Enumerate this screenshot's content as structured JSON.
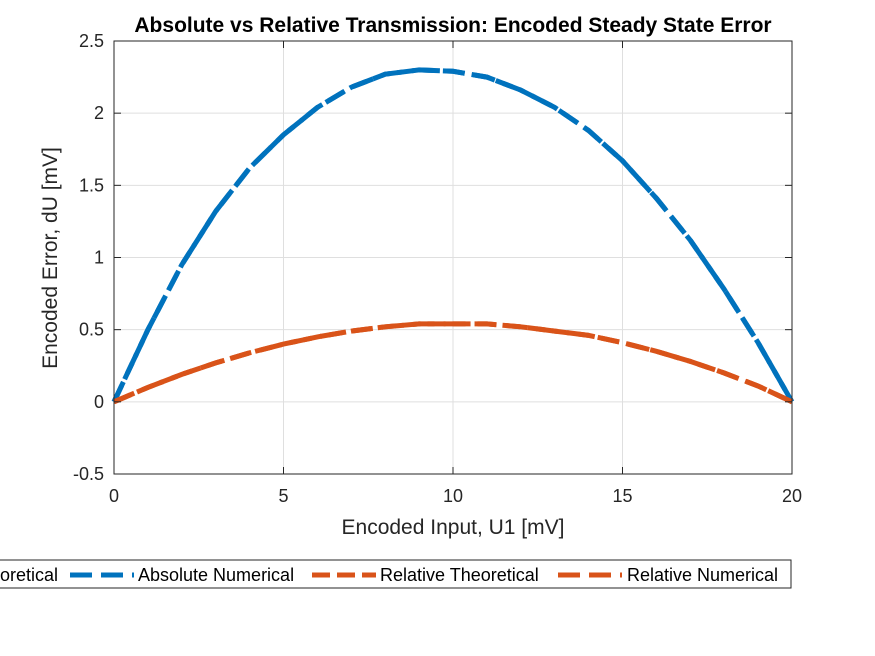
{
  "chart_data": {
    "type": "line",
    "title": "Absolute vs Relative Transmission: Encoded Steady State Error",
    "xlabel": "Encoded Input, U1 [mV]",
    "ylabel": "Encoded Error, dU [mV]",
    "xlim": [
      0,
      20
    ],
    "ylim": [
      -0.5,
      2.5
    ],
    "xticks": [
      0,
      5,
      10,
      15,
      20
    ],
    "xtick_labels": [
      "0",
      "5",
      "10",
      "15",
      "20"
    ],
    "yticks": [
      -0.5,
      0,
      0.5,
      1,
      1.5,
      2,
      2.5
    ],
    "ytick_labels": [
      "-0.5",
      "0",
      "0.5",
      "1",
      "1.5",
      "2",
      "2.5"
    ],
    "grid": true,
    "legend_placement": "bottom-outside",
    "x": [
      0,
      1,
      2,
      3,
      4,
      5,
      6,
      7,
      8,
      9,
      10,
      11,
      12,
      13,
      14,
      15,
      16,
      17,
      18,
      19,
      20
    ],
    "series": [
      {
        "name": "Absolute Theoretical",
        "color": "#0072BD",
        "style": "dashed",
        "values": [
          0,
          0.5,
          0.95,
          1.32,
          1.62,
          1.85,
          2.04,
          2.18,
          2.27,
          2.3,
          2.29,
          2.25,
          2.16,
          2.04,
          1.88,
          1.67,
          1.41,
          1.12,
          0.78,
          0.41,
          0
        ]
      },
      {
        "name": "Absolute Numerical",
        "color": "#0072BD",
        "style": "dashed",
        "values": [
          0,
          0.5,
          0.95,
          1.32,
          1.62,
          1.85,
          2.04,
          2.18,
          2.27,
          2.3,
          2.29,
          2.25,
          2.16,
          2.04,
          1.88,
          1.67,
          1.41,
          1.12,
          0.78,
          0.41,
          0
        ]
      },
      {
        "name": "Relative Theoretical",
        "color": "#D95319",
        "style": "dashed",
        "values": [
          0,
          0.1,
          0.19,
          0.27,
          0.34,
          0.4,
          0.45,
          0.49,
          0.52,
          0.54,
          0.54,
          0.54,
          0.52,
          0.49,
          0.46,
          0.41,
          0.35,
          0.28,
          0.2,
          0.11,
          0
        ]
      },
      {
        "name": "Relative Numerical",
        "color": "#D95319",
        "style": "dashed",
        "values": [
          0,
          0.1,
          0.19,
          0.27,
          0.34,
          0.4,
          0.45,
          0.49,
          0.52,
          0.54,
          0.54,
          0.54,
          0.52,
          0.49,
          0.46,
          0.41,
          0.35,
          0.28,
          0.2,
          0.11,
          0
        ]
      }
    ]
  },
  "legend": {
    "entries": [
      "oretical",
      "Absolute Numerical",
      "Relative Theoretical",
      "Relative Numerical"
    ],
    "colors": [
      "#0072BD",
      "#0072BD",
      "#D95319",
      "#D95319"
    ]
  }
}
